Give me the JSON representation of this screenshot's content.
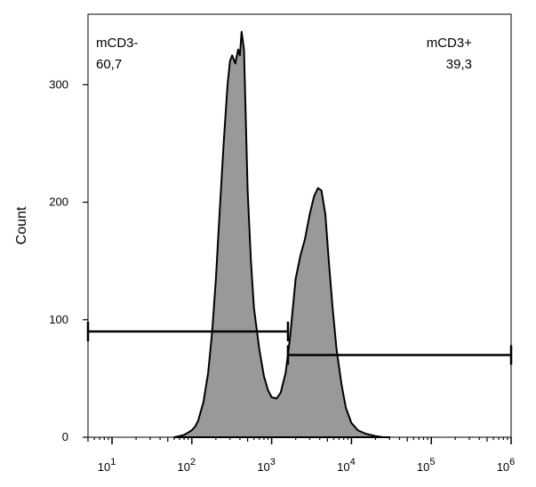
{
  "chart_data": {
    "type": "area",
    "title": "",
    "xlabel": "",
    "ylabel": "Count",
    "x_scale": "log",
    "xlim": [
      5,
      1000000
    ],
    "ylim": [
      0,
      360
    ],
    "grid": false,
    "fill_color": "#999999",
    "line_color": "#000000",
    "x_ticks": [
      {
        "value": 10,
        "base": "10",
        "exp": "1"
      },
      {
        "value": 100,
        "base": "10",
        "exp": "2"
      },
      {
        "value": 1000,
        "base": "10",
        "exp": "3"
      },
      {
        "value": 10000,
        "base": "10",
        "exp": "4"
      },
      {
        "value": 100000,
        "base": "10",
        "exp": "5"
      },
      {
        "value": 1000000,
        "base": "10",
        "exp": "6"
      }
    ],
    "y_ticks": [
      {
        "value": 0,
        "label": "0"
      },
      {
        "value": 100,
        "label": "100"
      },
      {
        "value": 200,
        "label": "200"
      },
      {
        "value": 300,
        "label": "300"
      }
    ],
    "histogram": {
      "x": [
        60,
        70,
        80,
        90,
        100,
        110,
        120,
        140,
        160,
        180,
        200,
        220,
        250,
        280,
        300,
        320,
        350,
        380,
        400,
        420,
        450,
        470,
        500,
        550,
        600,
        700,
        800,
        900,
        1000,
        1150,
        1300,
        1500,
        1700,
        2000,
        2300,
        2600,
        3000,
        3400,
        3800,
        4200,
        4700,
        5200,
        5800,
        6500,
        7500,
        8500,
        10000,
        12000,
        15000,
        20000,
        25000,
        30000
      ],
      "y": [
        0,
        1,
        2,
        4,
        6,
        9,
        14,
        30,
        55,
        90,
        135,
        185,
        250,
        300,
        320,
        325,
        318,
        330,
        325,
        345,
        330,
        280,
        210,
        150,
        110,
        75,
        52,
        40,
        34,
        33,
        38,
        55,
        85,
        135,
        155,
        168,
        190,
        205,
        212,
        210,
        190,
        150,
        110,
        75,
        45,
        25,
        12,
        6,
        3,
        1,
        0,
        0
      ]
    },
    "gates": [
      {
        "name": "mCD3-",
        "value": "60,7",
        "x_start": 5,
        "x_end": 1600,
        "y": 90
      },
      {
        "name": "mCD3+",
        "value": "39,3",
        "x_start": 1600,
        "x_end": 1000000,
        "y": 70
      }
    ]
  }
}
